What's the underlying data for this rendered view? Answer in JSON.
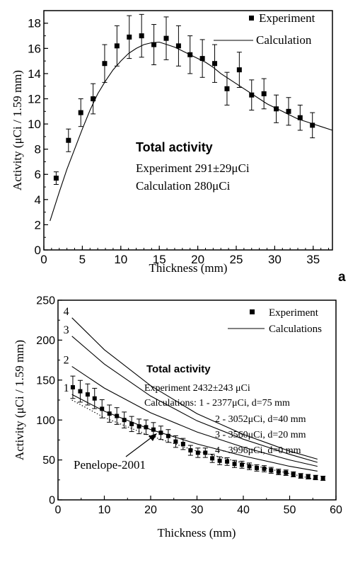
{
  "chart_data": [
    {
      "type": "scatter",
      "xlabel": "Thickness (mm)",
      "ylabel": "Activity (μCi / 1.59 mm)",
      "xlim": [
        0,
        37.5
      ],
      "ylim": [
        0,
        19
      ],
      "xticks": [
        "0",
        "5",
        "10",
        "15",
        "20",
        "25",
        "30",
        "35"
      ],
      "yticks": [
        "0",
        "2",
        "4",
        "6",
        "8",
        "10",
        "12",
        "14",
        "16",
        "18"
      ],
      "panel_label": "a",
      "grid": false,
      "legend_position": "top-right",
      "legend": {
        "experiment": "Experiment",
        "calculation": "Calculation"
      },
      "annotation": {
        "title": "Total activity",
        "line1": "Experiment  291±29μCi",
        "line2": "Calculation  280μCi"
      },
      "series": [
        {
          "name": "Experiment",
          "kind": "points",
          "x": [
            1.6,
            3.2,
            4.8,
            6.4,
            7.9,
            9.5,
            11.1,
            12.7,
            14.3,
            15.9,
            17.5,
            19.0,
            20.6,
            22.2,
            23.8,
            25.4,
            27.0,
            28.6,
            30.2,
            31.8,
            33.3,
            34.9
          ],
          "y": [
            5.7,
            8.7,
            10.9,
            12.0,
            14.8,
            16.2,
            16.9,
            17.0,
            16.3,
            16.8,
            16.2,
            15.5,
            15.2,
            14.8,
            12.8,
            14.3,
            12.3,
            12.4,
            11.2,
            11.0,
            10.5,
            9.9
          ],
          "err": [
            0.5,
            0.9,
            1.1,
            1.2,
            1.5,
            1.6,
            1.7,
            1.7,
            1.6,
            1.7,
            1.6,
            1.5,
            1.5,
            1.5,
            1.3,
            1.4,
            1.2,
            1.2,
            1.1,
            1.1,
            1.0,
            1.0
          ]
        },
        {
          "name": "Calculation",
          "kind": "line",
          "x": [
            0.8,
            2,
            3,
            4,
            5,
            6,
            7,
            8,
            9,
            10,
            11,
            12,
            13,
            14,
            15,
            16,
            17,
            18,
            19,
            20,
            21,
            22,
            23,
            24,
            25,
            26,
            27,
            28,
            29,
            30,
            31,
            32,
            33,
            34,
            35,
            36,
            37.5
          ],
          "y": [
            2.3,
            4.6,
            6.4,
            8.0,
            9.6,
            11.1,
            12.4,
            13.4,
            14.3,
            15.0,
            15.6,
            16.0,
            16.3,
            16.45,
            16.5,
            16.3,
            16.1,
            15.8,
            15.5,
            15.2,
            14.9,
            14.5,
            14.0,
            13.6,
            13.2,
            12.8,
            12.4,
            12.0,
            11.6,
            11.3,
            11.0,
            10.7,
            10.4,
            10.2,
            10.0,
            9.8,
            9.5
          ]
        }
      ]
    },
    {
      "type": "scatter",
      "xlabel": "Thickness (mm)",
      "ylabel": "Activity (μCi / 1.59 mm)",
      "xlim": [
        0,
        60
      ],
      "ylim": [
        0,
        250
      ],
      "xticks": [
        "0",
        "10",
        "20",
        "30",
        "40",
        "50",
        "60"
      ],
      "yticks": [
        "0",
        "50",
        "100",
        "150",
        "200",
        "250"
      ],
      "grid": false,
      "legend_position": "top-right",
      "legend": {
        "experiment": "Experiment",
        "calculation": "Calculations"
      },
      "annotation": {
        "title": "Total activity",
        "line1": "Experiment  2432±243  μCi",
        "line2": "Calculations: 1 - 2377μCi, d=75 mm",
        "line3": "2 - 3052μCi, d=40 mm",
        "line4": "3 - 3560μCi, d=20 mm",
        "line5": "4 - 3996μCi, d=0 mm",
        "penelope": "Penelope-2001"
      },
      "curve_labels": [
        "1",
        "2",
        "3",
        "4"
      ],
      "series": [
        {
          "name": "Experiment",
          "kind": "points",
          "x": [
            3.2,
            4.8,
            6.4,
            7.9,
            9.5,
            11.1,
            12.7,
            14.3,
            15.9,
            17.5,
            19.0,
            20.6,
            22.2,
            23.8,
            25.4,
            27.0,
            28.6,
            30.2,
            31.8,
            33.3,
            34.9,
            36.5,
            38.1,
            39.7,
            41.3,
            42.9,
            44.5,
            46.0,
            47.6,
            49.2,
            50.8,
            52.4,
            54.0,
            55.6,
            57.2
          ],
          "y": [
            141,
            136,
            132,
            127,
            114,
            108,
            105,
            100,
            95,
            92,
            91,
            88,
            84,
            80,
            73,
            70,
            62,
            59,
            59,
            52,
            49,
            48,
            45,
            44,
            42,
            40,
            39,
            37,
            35,
            34,
            32,
            30,
            29,
            28,
            27
          ],
          "err": [
            14,
            13.6,
            13.2,
            12.7,
            11.4,
            10.8,
            10.5,
            10,
            9.5,
            9.2,
            9.1,
            8.8,
            8.4,
            8,
            7.3,
            7,
            6.2,
            5.9,
            5.9,
            5.2,
            4.9,
            4.8,
            4.5,
            4.4,
            4.2,
            4,
            3.9,
            3.7,
            3.5,
            3.4,
            3.2,
            3,
            2.9,
            2.8,
            2.7
          ]
        },
        {
          "name": "1",
          "kind": "line",
          "x": [
            3,
            10,
            20,
            30,
            40,
            50,
            56
          ],
          "y": [
            132,
            111,
            88,
            70,
            55,
            42,
            36
          ]
        },
        {
          "name": "2",
          "kind": "line",
          "x": [
            3,
            10,
            20,
            30,
            40,
            50,
            56
          ],
          "y": [
            167,
            140,
            109,
            85,
            66,
            50,
            42
          ]
        },
        {
          "name": "3",
          "kind": "line",
          "x": [
            3,
            10,
            20,
            30,
            40,
            50,
            56
          ],
          "y": [
            205,
            170,
            130,
            99,
            76,
            57,
            47
          ]
        },
        {
          "name": "4",
          "kind": "line",
          "x": [
            3,
            10,
            20,
            30,
            40,
            50,
            56
          ],
          "y": [
            228,
            188,
            143,
            108,
            82,
            61,
            51
          ]
        },
        {
          "name": "Penelope-2001",
          "kind": "dotted",
          "x": [
            3,
            10,
            20,
            30,
            40,
            50,
            56
          ],
          "y": [
            125,
            103,
            80,
            61,
            46,
            33,
            25
          ]
        }
      ]
    }
  ]
}
